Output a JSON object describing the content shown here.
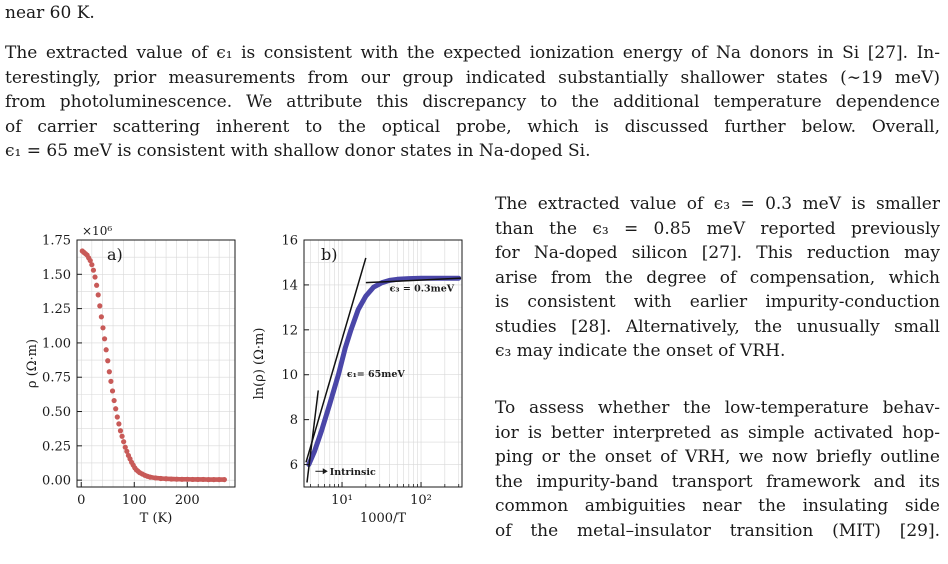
{
  "text": {
    "top_line": "near 60 K.",
    "para1_lines": [
      "The extracted value of ϵ₁ is consistent with the expected ionization energy of Na donors in Si [27]. In-",
      "terestingly, prior measurements from our group indicated substantially shallower states (∼19 meV)",
      "from photoluminescence. We attribute this discrepancy to the additional temperature dependence",
      "of carrier scattering inherent to the optical probe, which is discussed further below.  Overall,",
      "ϵ₁ = 65 meV is consistent with shallow donor states in Na-doped Si."
    ],
    "para2_lines": [
      "The extracted value of ϵ₃ = 0.3 meV is smaller",
      "than the ϵ₃ = 0.85 meV reported previously",
      "for Na-doped silicon [27]. This reduction may",
      "arise from the degree of compensation, which",
      "is consistent with earlier impurity-conduction",
      "studies [28]. Alternatively, the unusually small",
      "ϵ₃ may indicate the onset of VRH."
    ],
    "para3_lines": [
      "To assess whether the low-temperature behav-",
      "ior is better interpreted as simple activated hop-",
      "ping or the onset of VRH, we now briefly outline",
      "the impurity-band transport framework and its",
      "common ambiguities near the insulating side",
      "of the metal–insulator transition (MIT) [29]."
    ]
  },
  "chart_data": [
    {
      "type": "scatter",
      "panel_label": "a)",
      "xlabel": "T (K)",
      "ylabel": "ρ (Ω·m)",
      "y_multiplier_label": "×10⁶",
      "xlim": [
        -8,
        290
      ],
      "ylim": [
        -0.05,
        1.75
      ],
      "xticks": [
        0,
        100,
        200
      ],
      "yticks": [
        0.0,
        0.25,
        0.5,
        0.75,
        1.0,
        1.25,
        1.5,
        1.75
      ],
      "ytick_labels": [
        "0.00",
        "0.25",
        "0.50",
        "0.75",
        "1.00",
        "1.25",
        "1.50",
        "1.75"
      ],
      "grid": true,
      "marker_color": "#c85a58",
      "x": [
        2,
        5,
        8,
        11,
        14,
        17,
        20,
        23,
        26,
        29,
        32,
        35,
        38,
        41,
        44,
        47,
        50,
        53,
        56,
        59,
        62,
        65,
        68,
        71,
        74,
        77,
        80,
        83,
        86,
        89,
        92,
        95,
        98,
        101,
        104,
        107,
        110,
        115,
        120,
        125,
        130,
        140,
        150,
        160,
        170,
        180,
        190,
        200,
        210,
        220,
        230,
        240,
        250,
        260,
        270
      ],
      "y": [
        1.67,
        1.66,
        1.65,
        1.64,
        1.62,
        1.6,
        1.57,
        1.53,
        1.48,
        1.42,
        1.35,
        1.27,
        1.19,
        1.11,
        1.03,
        0.95,
        0.87,
        0.79,
        0.72,
        0.65,
        0.58,
        0.52,
        0.46,
        0.41,
        0.36,
        0.32,
        0.28,
        0.24,
        0.21,
        0.18,
        0.155,
        0.13,
        0.11,
        0.09,
        0.075,
        0.065,
        0.055,
        0.045,
        0.035,
        0.028,
        0.022,
        0.016,
        0.012,
        0.01,
        0.008,
        0.007,
        0.006,
        0.006,
        0.005,
        0.005,
        0.005,
        0.004,
        0.004,
        0.004,
        0.004
      ]
    },
    {
      "type": "line",
      "panel_label": "b)",
      "xlabel": "1000/T",
      "ylabel": "ln(ρ) (Ω·m)",
      "x_scale": "log",
      "xlim": [
        3.3,
        330
      ],
      "ylim": [
        5,
        16
      ],
      "yticks": [
        6,
        8,
        10,
        12,
        14,
        16
      ],
      "xticks": [
        10,
        100
      ],
      "xtick_labels": [
        "10¹",
        "10²"
      ],
      "grid": true,
      "series": [
        {
          "color": "#4a46a8",
          "x": [
            3.8,
            4.5,
            5.5,
            7,
            9,
            11,
            13,
            16,
            20,
            25,
            32,
            40,
            50,
            70,
            100,
            150,
            200,
            300
          ],
          "y": [
            6.0,
            6.6,
            7.5,
            8.7,
            10.0,
            11.2,
            12.0,
            12.9,
            13.5,
            13.9,
            14.1,
            14.2,
            14.25,
            14.28,
            14.3,
            14.3,
            14.3,
            14.3
          ]
        }
      ],
      "fit_lines": [
        {
          "x": [
            3.5,
            20
          ],
          "y": [
            6.1,
            15.2
          ]
        },
        {
          "x": [
            3.6,
            5.0
          ],
          "y": [
            5.2,
            9.3
          ]
        },
        {
          "x": [
            20,
            320
          ],
          "y": [
            14.1,
            14.3
          ]
        }
      ],
      "annotations": [
        {
          "text": "ϵ₃ = 0.3meV"
        },
        {
          "text": "ϵ₁= 65meV"
        },
        {
          "text": "Intrinsic"
        }
      ]
    }
  ]
}
